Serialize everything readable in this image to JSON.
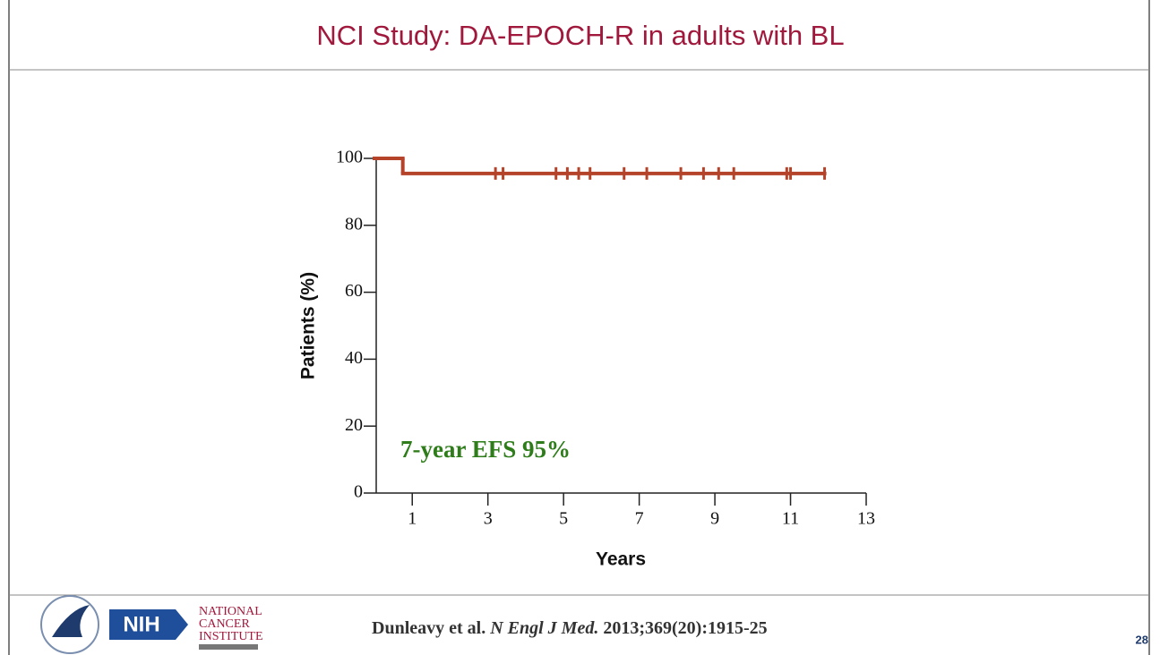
{
  "title": "NCI Study: DA-EPOCH-R in adults with BL",
  "chart_data": {
    "type": "step",
    "y_label": "Patients (%)",
    "x_label": "Years",
    "annotation": "7-year EFS 95%",
    "xlim": [
      0,
      13
    ],
    "xticks": [
      1,
      3,
      5,
      7,
      9,
      11,
      13
    ],
    "ylim": [
      0,
      100
    ],
    "yticks": [
      0,
      20,
      40,
      60,
      80,
      100
    ],
    "series": [
      {
        "color": "#b5432a",
        "x": [
          0,
          0.75,
          11.9
        ],
        "values": [
          100,
          95.5,
          95.5
        ]
      }
    ],
    "censored": {
      "color": "#b5432a",
      "x": [
        3.2,
        3.4,
        4.8,
        5.1,
        5.4,
        5.7,
        6.6,
        7.2,
        8.1,
        8.7,
        9.1,
        9.5,
        10.9,
        11.0,
        11.9
      ],
      "values": [
        95.5,
        95.5,
        95.5,
        95.5,
        95.5,
        95.5,
        95.5,
        95.5,
        95.5,
        95.5,
        95.5,
        95.5,
        95.5,
        95.5,
        95.5
      ]
    }
  },
  "citation": {
    "authors": "Dunleavy et al.",
    "journal": "N Engl J Med.",
    "details": "2013;369(20):1915-25"
  },
  "logos": {
    "nih": "NIH",
    "nci": [
      "NATIONAL",
      "CANCER",
      "INSTITUTE"
    ]
  },
  "page_number": "28"
}
